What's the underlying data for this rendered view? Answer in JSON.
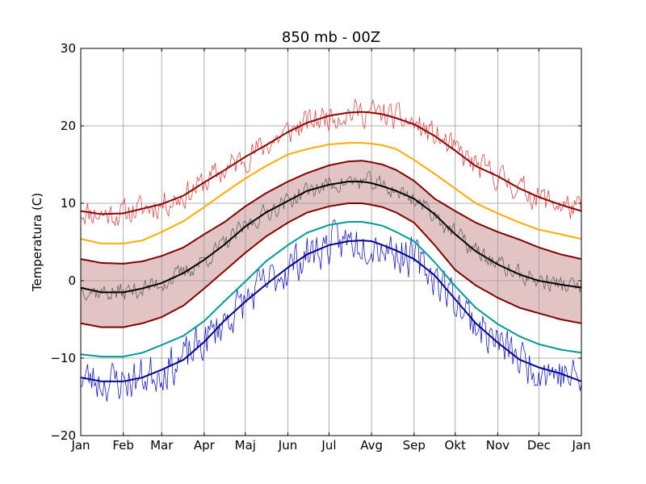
{
  "chart_data": {
    "type": "line",
    "title": "850 mb - 00Z",
    "xlabel": "",
    "ylabel": "Temperatura (C)",
    "xlim": [
      0,
      365
    ],
    "ylim": [
      -20,
      30
    ],
    "grid": true,
    "x_ticks": [
      {
        "x": 0,
        "label": "Jan"
      },
      {
        "x": 31,
        "label": "Feb"
      },
      {
        "x": 59,
        "label": "Mar"
      },
      {
        "x": 90,
        "label": "Apr"
      },
      {
        "x": 120,
        "label": "Maj"
      },
      {
        "x": 151,
        "label": "Jun"
      },
      {
        "x": 181,
        "label": "Jul"
      },
      {
        "x": 212,
        "label": "Avg"
      },
      {
        "x": 243,
        "label": "Sep"
      },
      {
        "x": 273,
        "label": "Okt"
      },
      {
        "x": 304,
        "label": "Nov"
      },
      {
        "x": 334,
        "label": "Dec"
      },
      {
        "x": 365,
        "label": "Jan"
      }
    ],
    "y_ticks": [
      {
        "y": -20,
        "label": "−20"
      },
      {
        "y": -10,
        "label": "−10"
      },
      {
        "y": 0,
        "label": "0"
      },
      {
        "y": 10,
        "label": "10"
      },
      {
        "y": 20,
        "label": "20"
      },
      {
        "y": 30,
        "label": "30"
      }
    ],
    "band": {
      "fill": "#e3c4c4",
      "edge_color": "#800000",
      "x": [
        0,
        15,
        31,
        45,
        59,
        75,
        90,
        105,
        120,
        135,
        151,
        165,
        181,
        195,
        205,
        212,
        220,
        230,
        243,
        258,
        273,
        288,
        304,
        320,
        334,
        350,
        365
      ],
      "upper": [
        2.8,
        2.3,
        2.2,
        2.5,
        3.2,
        4.3,
        6.0,
        7.6,
        9.6,
        11.3,
        12.8,
        13.9,
        14.9,
        15.4,
        15.5,
        15.3,
        15.0,
        14.3,
        12.9,
        10.6,
        9.0,
        7.5,
        6.3,
        5.3,
        4.3,
        3.4,
        2.8
      ],
      "lower": [
        -5.5,
        -6.0,
        -6.0,
        -5.5,
        -4.7,
        -3.2,
        -1.0,
        1.3,
        3.6,
        5.7,
        7.5,
        8.8,
        9.6,
        10.0,
        10.0,
        9.8,
        9.5,
        8.8,
        7.5,
        4.6,
        1.4,
        -0.6,
        -2.2,
        -3.5,
        -4.2,
        -5.0,
        -5.5
      ]
    },
    "series": [
      {
        "color": "#ff6a00",
        "width": 2,
        "x": [
          0,
          15,
          31,
          45,
          59,
          75,
          90,
          105,
          120,
          135,
          151,
          165,
          181,
          195,
          205,
          212,
          220,
          230,
          243,
          258,
          273,
          288,
          304,
          320,
          334,
          350,
          365
        ],
        "values": [
          5.4,
          4.8,
          4.8,
          5.2,
          6.3,
          7.7,
          9.5,
          11.4,
          13.2,
          14.8,
          16.3,
          17.0,
          17.6,
          17.8,
          17.8,
          17.7,
          17.5,
          17.0,
          15.6,
          13.8,
          11.9,
          10.0,
          8.7,
          7.5,
          6.6,
          6.0,
          5.4
        ]
      },
      {
        "color": "#009999",
        "width": 2,
        "x": [
          0,
          15,
          31,
          45,
          59,
          75,
          90,
          105,
          120,
          135,
          151,
          165,
          181,
          195,
          205,
          212,
          220,
          230,
          243,
          258,
          273,
          288,
          304,
          320,
          334,
          350,
          365
        ],
        "values": [
          -9.5,
          -9.8,
          -9.8,
          -9.3,
          -8.3,
          -7.1,
          -5.2,
          -2.6,
          -0.1,
          2.5,
          4.6,
          6.2,
          7.2,
          7.6,
          7.6,
          7.4,
          7.1,
          6.3,
          5.1,
          2.4,
          -0.7,
          -3.5,
          -5.6,
          -7.2,
          -8.2,
          -8.9,
          -9.3
        ]
      },
      {
        "color": "#8b0000",
        "width": 2,
        "x": [
          0,
          15,
          31,
          45,
          59,
          75,
          90,
          105,
          120,
          135,
          151,
          165,
          181,
          195,
          205,
          212,
          220,
          230,
          243,
          258,
          273,
          288,
          304,
          320,
          334,
          350,
          365
        ],
        "values": [
          9.0,
          8.6,
          8.7,
          9.3,
          9.9,
          11.0,
          12.7,
          14.3,
          16.0,
          17.5,
          19.2,
          20.4,
          21.3,
          21.7,
          21.8,
          21.7,
          21.5,
          21.0,
          20.2,
          18.7,
          16.8,
          14.8,
          13.5,
          11.9,
          10.8,
          9.8,
          9.0
        ]
      },
      {
        "color": "#00008b",
        "width": 2,
        "x": [
          0,
          15,
          31,
          45,
          59,
          75,
          90,
          105,
          120,
          135,
          151,
          165,
          181,
          195,
          205,
          212,
          220,
          230,
          243,
          258,
          273,
          288,
          304,
          320,
          334,
          350,
          365
        ],
        "values": [
          -12.5,
          -13.0,
          -13.0,
          -12.5,
          -11.5,
          -10.2,
          -7.9,
          -5.1,
          -2.7,
          -0.5,
          1.7,
          3.4,
          4.6,
          5.1,
          5.2,
          5.1,
          4.6,
          3.9,
          2.8,
          0.7,
          -2.4,
          -5.5,
          -8.0,
          -10.2,
          -11.2,
          -12.0,
          -13.0
        ]
      },
      {
        "color": "#000000",
        "width": 2,
        "x": [
          0,
          15,
          31,
          45,
          59,
          75,
          90,
          105,
          120,
          135,
          151,
          165,
          181,
          195,
          205,
          212,
          220,
          230,
          243,
          258,
          273,
          288,
          304,
          320,
          334,
          350,
          365
        ],
        "values": [
          -0.9,
          -1.5,
          -1.5,
          -1.0,
          -0.3,
          1.0,
          2.7,
          4.7,
          7.0,
          8.8,
          10.3,
          11.6,
          12.4,
          12.8,
          12.8,
          12.6,
          12.2,
          11.6,
          10.6,
          8.6,
          6.0,
          3.8,
          2.1,
          0.8,
          0.0,
          -0.5,
          -0.9
        ]
      }
    ],
    "noisy_series": [
      {
        "color": "#e83030",
        "width": 0.7,
        "base_series": 2,
        "amplitude": 1.6,
        "seed": 11
      },
      {
        "color": "#0000dd",
        "width": 0.7,
        "base_series": 3,
        "amplitude": 2.4,
        "seed": 23
      },
      {
        "color": "#555555",
        "width": 0.7,
        "base_series": 4,
        "amplitude": 1.1,
        "seed": 37
      }
    ]
  }
}
